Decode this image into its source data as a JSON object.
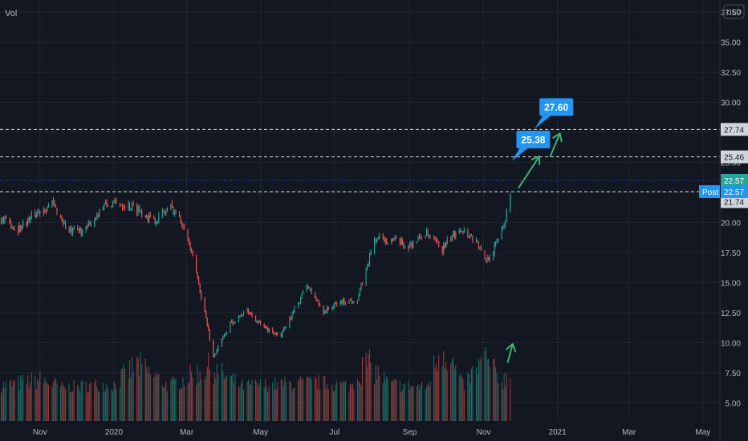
{
  "header": {
    "indicator_label": "Vol",
    "currency": "USD"
  },
  "chart_data": {
    "type": "candlestick",
    "xlabel": "",
    "ylabel": "",
    "grid": true,
    "x_tick_labels": [
      "Nov",
      "2020",
      "Mar",
      "May",
      "Jul",
      "Sep",
      "Nov",
      "2021",
      "Mar",
      "May"
    ],
    "x_tick_dates": [
      "2019-11-01",
      "2020-01-01",
      "2020-03-01",
      "2020-05-01",
      "2020-07-01",
      "2020-09-01",
      "2020-11-01",
      "2021-01-01",
      "2021-03-01",
      "2021-05-01"
    ],
    "y_tick_labels": [
      "37.50",
      "35.00",
      "32.50",
      "30.00",
      "27.50",
      "25.00",
      "22.50",
      "20.00",
      "17.50",
      "15.00",
      "12.50",
      "10.00",
      "7.50",
      "5.00"
    ],
    "y_ticks": [
      37.5,
      35,
      32.5,
      30,
      27.5,
      25,
      22.5,
      20,
      17.5,
      15,
      12.5,
      10,
      7.5,
      5
    ],
    "ylim": [
      3.5,
      38.5
    ],
    "xlim": [
      "2019-09-29",
      "2021-05-15"
    ],
    "price_series": [
      {
        "date": "2019-09-30",
        "close": 20.3
      },
      {
        "date": "2019-10-14",
        "close": 19.5
      },
      {
        "date": "2019-10-28",
        "close": 20.7
      },
      {
        "date": "2019-11-11",
        "close": 21.6
      },
      {
        "date": "2019-11-25",
        "close": 19.2
      },
      {
        "date": "2019-12-09",
        "close": 19.4
      },
      {
        "date": "2019-12-23",
        "close": 21.4
      },
      {
        "date": "2020-01-06",
        "close": 21.6
      },
      {
        "date": "2020-01-20",
        "close": 21.2
      },
      {
        "date": "2020-02-03",
        "close": 20.1
      },
      {
        "date": "2020-02-17",
        "close": 21.3
      },
      {
        "date": "2020-02-28",
        "close": 19.8
      },
      {
        "date": "2020-03-09",
        "close": 15.8
      },
      {
        "date": "2020-03-17",
        "close": 12.0
      },
      {
        "date": "2020-03-23",
        "close": 8.8
      },
      {
        "date": "2020-04-06",
        "close": 11.6
      },
      {
        "date": "2020-04-20",
        "close": 12.7
      },
      {
        "date": "2020-05-04",
        "close": 11.2
      },
      {
        "date": "2020-05-18",
        "close": 10.6
      },
      {
        "date": "2020-06-01",
        "close": 13.3
      },
      {
        "date": "2020-06-08",
        "close": 14.8
      },
      {
        "date": "2020-06-22",
        "close": 12.6
      },
      {
        "date": "2020-07-06",
        "close": 13.4
      },
      {
        "date": "2020-07-20",
        "close": 13.6
      },
      {
        "date": "2020-07-27",
        "close": 16.0
      },
      {
        "date": "2020-08-03",
        "close": 18.6
      },
      {
        "date": "2020-08-17",
        "close": 18.6
      },
      {
        "date": "2020-08-31",
        "close": 18.0
      },
      {
        "date": "2020-09-14",
        "close": 19.1
      },
      {
        "date": "2020-09-28",
        "close": 17.8
      },
      {
        "date": "2020-10-12",
        "close": 19.6
      },
      {
        "date": "2020-10-26",
        "close": 18.5
      },
      {
        "date": "2020-11-02",
        "close": 16.8
      },
      {
        "date": "2020-11-09",
        "close": 17.6
      },
      {
        "date": "2020-11-16",
        "close": 19.6
      },
      {
        "date": "2020-11-20",
        "close": 20.6
      },
      {
        "date": "2020-11-23",
        "close": 22.6
      }
    ],
    "volume_level": {
      "date": "2020-11-20",
      "value": 5.2
    },
    "volume_series": [
      {
        "date": "2019-09-30",
        "value": 7.0
      },
      {
        "date": "2019-11-01",
        "value": 7.8
      },
      {
        "date": "2019-11-20",
        "value": 6.8
      },
      {
        "date": "2019-12-15",
        "value": 7.1
      },
      {
        "date": "2020-01-01",
        "value": 7.2
      },
      {
        "date": "2020-01-20",
        "value": 9.6
      },
      {
        "date": "2020-02-15",
        "value": 7.0
      },
      {
        "date": "2020-03-01",
        "value": 8.0
      },
      {
        "date": "2020-03-20",
        "value": 9.3
      },
      {
        "date": "2020-04-15",
        "value": 7.0
      },
      {
        "date": "2020-05-15",
        "value": 7.2
      },
      {
        "date": "2020-06-15",
        "value": 7.4
      },
      {
        "date": "2020-07-15",
        "value": 7.0
      },
      {
        "date": "2020-07-27",
        "value": 9.9
      },
      {
        "date": "2020-08-15",
        "value": 7.2
      },
      {
        "date": "2020-09-15",
        "value": 6.8
      },
      {
        "date": "2020-09-28",
        "value": 12.2
      },
      {
        "date": "2020-10-15",
        "value": 7.0
      },
      {
        "date": "2020-11-02",
        "value": 10.3
      },
      {
        "date": "2020-11-16",
        "value": 7.6
      },
      {
        "date": "2020-11-23",
        "value": 8.5
      }
    ],
    "current_price": {
      "value": 22.57,
      "label": "22.57"
    },
    "post_market": {
      "tag": "Post",
      "value": 22.57,
      "label": "22.57"
    },
    "axis_markers": [
      {
        "value": 27.74,
        "label": "27.74"
      },
      {
        "value": 25.46,
        "label": "25.46"
      },
      {
        "value": 21.74,
        "label": "21.74"
      }
    ],
    "horizontal_lines": [
      27.74,
      25.46,
      22.57
    ],
    "target_labels": [
      {
        "label": "25.38",
        "date": "2020-12-12",
        "value": 26.9
      },
      {
        "label": "27.60",
        "date": "2020-12-31",
        "value": 29.6
      }
    ],
    "annotation_arrows": [
      {
        "from_date": "2020-11-30",
        "from_value": 22.9,
        "to_date": "2020-12-17",
        "to_value": 25.5
      },
      {
        "from_date": "2020-12-26",
        "from_value": 25.5,
        "to_date": "2021-01-03",
        "to_value": 27.4
      },
      {
        "from_date": "2020-11-21",
        "from_value": 8.4,
        "to_date": "2020-11-25",
        "to_value": 9.9
      }
    ],
    "colors": {
      "background": "#131722",
      "grid": "#1f2431",
      "axis_text": "#b2b5be",
      "up": "#26a69a",
      "down": "#ef5350",
      "up_volume": "#1b7a71",
      "down_volume": "#b53f3d",
      "label_blue": "#2196f3",
      "marker_bg": "#d1d4dc",
      "current_price": "#26a69a",
      "arrow": "#3cb371",
      "dashed_line": "#d1d4dc"
    }
  }
}
